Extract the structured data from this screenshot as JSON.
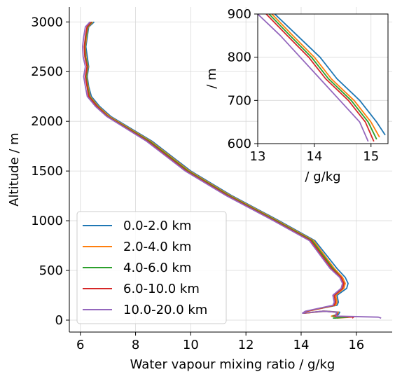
{
  "chart_data": [
    {
      "type": "line",
      "xlabel": "Water vapour mixing ratio / g/kg",
      "ylabel": "Altitude / m",
      "xlim": [
        5.6,
        17.3
      ],
      "ylim": [
        -120,
        3150
      ],
      "xticks": [
        6,
        8,
        10,
        12,
        14,
        16
      ],
      "yticks": [
        0,
        500,
        1000,
        1500,
        2000,
        2500,
        3000
      ],
      "grid": true,
      "legend_position": "lower-left",
      "series": [
        {
          "name": "0.0-2.0 km",
          "color": "#1f77b4",
          "x": [
            15.2,
            15.6,
            15.2,
            15.35,
            15.4,
            14.9,
            14.1,
            14.2,
            15.3,
            15.35,
            15.3,
            15.65,
            15.7,
            15.6,
            15.3,
            14.5,
            13.2,
            11.5,
            10.0,
            8.6,
            7.1,
            6.7,
            6.4,
            6.3,
            6.25,
            6.3,
            6.25,
            6.2,
            6.25,
            6.3,
            6.5
          ],
          "y": [
            20,
            30,
            40,
            55,
            80,
            90,
            70,
            90,
            150,
            180,
            250,
            320,
            370,
            430,
            520,
            800,
            1000,
            1250,
            1500,
            1800,
            2050,
            2150,
            2250,
            2350,
            2450,
            2550,
            2650,
            2750,
            2850,
            2950,
            3000
          ]
        },
        {
          "name": "2.0-4.0 km",
          "color": "#ff7f0e",
          "x": [
            15.3,
            15.8,
            15.1,
            15.3,
            15.35,
            14.85,
            14.15,
            14.25,
            15.25,
            15.3,
            15.25,
            15.55,
            15.6,
            15.5,
            15.2,
            14.45,
            13.15,
            11.45,
            9.95,
            8.55,
            7.05,
            6.65,
            6.35,
            6.28,
            6.22,
            6.28,
            6.2,
            6.18,
            6.22,
            6.28,
            6.45
          ],
          "y": [
            20,
            30,
            40,
            55,
            80,
            90,
            70,
            90,
            150,
            180,
            250,
            320,
            370,
            430,
            520,
            800,
            1000,
            1250,
            1500,
            1800,
            2050,
            2150,
            2250,
            2350,
            2450,
            2550,
            2650,
            2750,
            2850,
            2950,
            3000
          ]
        },
        {
          "name": "4.0-6.0 km",
          "color": "#2ca02c",
          "x": [
            15.15,
            15.7,
            15.15,
            15.3,
            15.3,
            14.8,
            14.1,
            14.2,
            15.2,
            15.25,
            15.2,
            15.5,
            15.55,
            15.45,
            15.15,
            14.4,
            13.1,
            11.4,
            9.9,
            8.5,
            7.0,
            6.62,
            6.32,
            6.26,
            6.2,
            6.26,
            6.18,
            6.16,
            6.2,
            6.26,
            6.42
          ],
          "y": [
            20,
            30,
            40,
            55,
            80,
            90,
            70,
            90,
            150,
            180,
            250,
            320,
            370,
            430,
            520,
            800,
            1000,
            1250,
            1500,
            1800,
            2050,
            2150,
            2250,
            2350,
            2450,
            2550,
            2650,
            2750,
            2850,
            2950,
            3000
          ]
        },
        {
          "name": "6.0-10.0 km",
          "color": "#d62728",
          "x": [
            15.85,
            15.9,
            15.2,
            15.3,
            15.3,
            14.8,
            14.1,
            14.2,
            15.2,
            15.25,
            15.2,
            15.5,
            15.55,
            15.45,
            15.1,
            14.35,
            13.05,
            11.35,
            9.85,
            8.45,
            6.98,
            6.6,
            6.3,
            6.24,
            6.18,
            6.24,
            6.16,
            6.14,
            6.18,
            6.24,
            6.4
          ],
          "y": [
            20,
            30,
            40,
            55,
            80,
            90,
            70,
            90,
            150,
            180,
            250,
            320,
            370,
            430,
            520,
            800,
            1000,
            1250,
            1500,
            1800,
            2050,
            2150,
            2250,
            2350,
            2450,
            2550,
            2650,
            2750,
            2850,
            2950,
            3000
          ]
        },
        {
          "name": "10.0-20.0 km",
          "color": "#9467bd",
          "x": [
            16.9,
            16.8,
            15.3,
            15.25,
            15.3,
            14.8,
            14.05,
            14.15,
            15.15,
            15.2,
            15.15,
            15.45,
            15.5,
            15.4,
            15.05,
            14.3,
            13.0,
            11.3,
            9.8,
            8.4,
            6.95,
            6.55,
            6.25,
            6.18,
            6.12,
            6.18,
            6.1,
            6.08,
            6.12,
            6.18,
            6.35
          ],
          "y": [
            20,
            30,
            40,
            55,
            80,
            90,
            70,
            90,
            150,
            180,
            250,
            320,
            370,
            430,
            520,
            800,
            1000,
            1250,
            1500,
            1800,
            2050,
            2150,
            2250,
            2350,
            2450,
            2550,
            2650,
            2750,
            2850,
            2950,
            3000
          ]
        }
      ]
    },
    {
      "type": "line",
      "xlabel": "/ g/kg",
      "ylabel": "/ m",
      "xlim": [
        13,
        15.3
      ],
      "ylim": [
        600,
        900
      ],
      "xticks": [
        13,
        14,
        15
      ],
      "yticks": [
        600,
        700,
        800,
        900
      ],
      "grid": true,
      "series": [
        {
          "color": "#1f77b4",
          "x": [
            13.3,
            13.7,
            14.1,
            14.4,
            14.8,
            15.1,
            15.25
          ],
          "y": [
            900,
            850,
            800,
            750,
            700,
            650,
            620
          ]
        },
        {
          "color": "#ff7f0e",
          "x": [
            13.25,
            13.62,
            14.0,
            14.3,
            14.7,
            15.0,
            15.15
          ],
          "y": [
            900,
            850,
            800,
            750,
            700,
            650,
            615
          ]
        },
        {
          "color": "#2ca02c",
          "x": [
            13.2,
            13.57,
            13.95,
            14.25,
            14.65,
            14.95,
            15.1
          ],
          "y": [
            900,
            850,
            800,
            750,
            700,
            650,
            610
          ]
        },
        {
          "color": "#d62728",
          "x": [
            13.15,
            13.52,
            13.9,
            14.2,
            14.6,
            14.9,
            15.05
          ],
          "y": [
            900,
            850,
            800,
            750,
            700,
            650,
            605
          ]
        },
        {
          "color": "#9467bd",
          "x": [
            13.0,
            13.4,
            13.75,
            14.1,
            14.45,
            14.8,
            14.95
          ],
          "y": [
            900,
            850,
            800,
            750,
            700,
            650,
            605
          ]
        }
      ]
    }
  ]
}
